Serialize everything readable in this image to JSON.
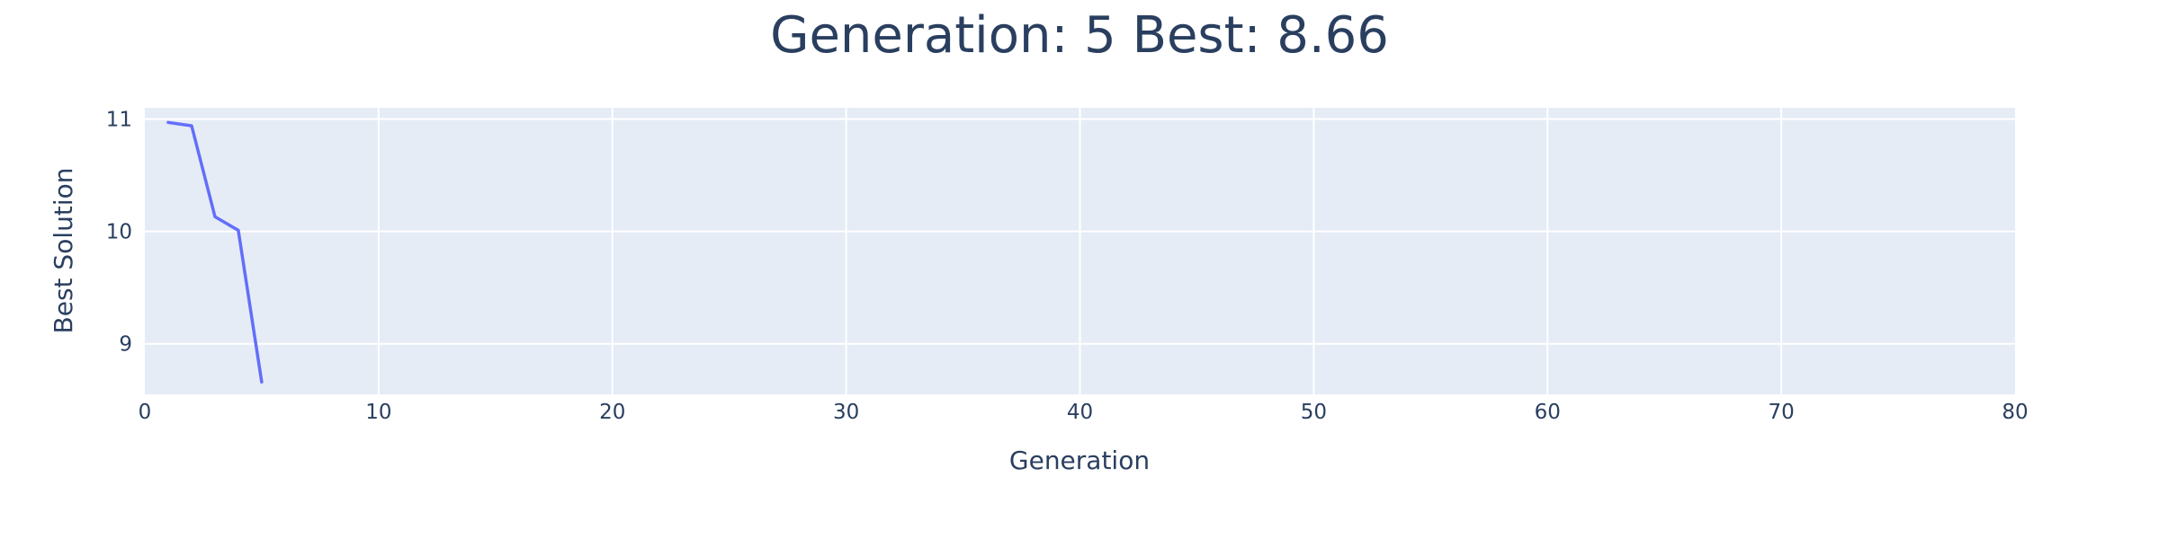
{
  "chart_data": {
    "type": "line",
    "title": "Generation: 5 Best: 8.66",
    "xlabel": "Generation",
    "ylabel": "Best Solution",
    "xlim": [
      0,
      80
    ],
    "ylim": [
      8.55,
      11.1
    ],
    "x_ticks": [
      0,
      10,
      20,
      30,
      40,
      50,
      60,
      70,
      80
    ],
    "y_ticks": [
      9,
      10,
      11
    ],
    "grid": true,
    "colors": {
      "plot_background": "#e5ecf6",
      "grid": "#ffffff",
      "line": "#636efa",
      "text": "#2a3f5f"
    },
    "series": [
      {
        "x": [
          1,
          2,
          3,
          4,
          5
        ],
        "values": [
          10.97,
          10.94,
          10.13,
          10.01,
          8.66
        ]
      }
    ]
  }
}
